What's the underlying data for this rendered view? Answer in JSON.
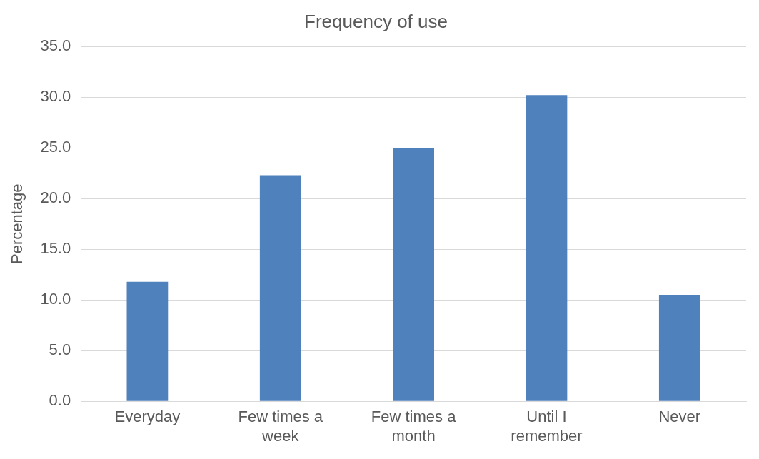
{
  "chart_data": {
    "type": "bar",
    "title": "Frequency of use",
    "ylabel": "Percentage",
    "categories": [
      "Everyday",
      "Few times a week",
      "Few times a month",
      "Until I remember",
      "Never"
    ],
    "values": [
      11.8,
      22.3,
      25.0,
      30.2,
      10.5
    ],
    "color": "#4f81bd",
    "ylim": [
      0,
      35
    ],
    "yticks": [
      {
        "value": 0,
        "label": "0.0"
      },
      {
        "value": 5,
        "label": "5.0"
      },
      {
        "value": 10,
        "label": "10.0"
      },
      {
        "value": 15,
        "label": "15.0"
      },
      {
        "value": 20,
        "label": "20.0"
      },
      {
        "value": 25,
        "label": "25.0"
      },
      {
        "value": 30,
        "label": "30.0"
      },
      {
        "value": 35,
        "label": "35.0"
      }
    ],
    "grid": "y",
    "legend": false
  }
}
